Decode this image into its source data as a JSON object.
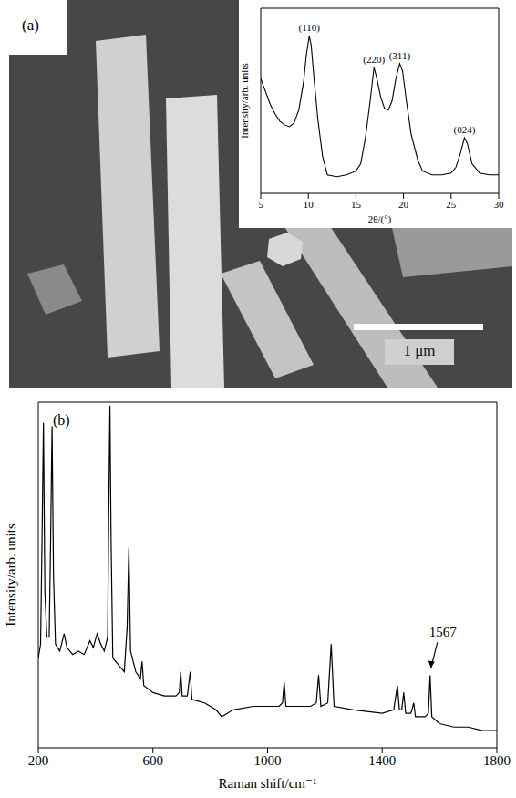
{
  "image": {
    "panel_label": "(a)",
    "scale_bar": "1 μm"
  },
  "chart_data": [
    {
      "type": "line",
      "xlabel": "2θ/(°)",
      "ylabel": "Intensity/arb. units",
      "x": [
        5,
        5.5,
        6,
        6.5,
        7,
        7.5,
        8,
        8.5,
        9,
        9.5,
        9.8,
        10.1,
        10.3,
        10.6,
        11,
        11.5,
        12,
        13,
        14,
        15,
        15.5,
        16,
        16.5,
        16.9,
        17.2,
        17.6,
        18,
        18.4,
        18.8,
        19.2,
        19.6,
        19.9,
        20.3,
        20.8,
        21.5,
        22,
        23,
        24,
        25,
        25.5,
        26,
        26.4,
        26.7,
        27.2,
        28,
        29,
        30
      ],
      "values": [
        62,
        55,
        48,
        43,
        39,
        37,
        36,
        38,
        45,
        60,
        75,
        85,
        80,
        62,
        40,
        20,
        10,
        9,
        10,
        12,
        16,
        30,
        50,
        68,
        62,
        52,
        46,
        45,
        50,
        62,
        70,
        66,
        50,
        32,
        18,
        12,
        10,
        10,
        11,
        14,
        22,
        30,
        27,
        16,
        11,
        10,
        10
      ],
      "color": "#000000",
      "xlim": [
        5,
        30
      ],
      "xticks": [
        5,
        10,
        15,
        20,
        25,
        30
      ],
      "ylim": [
        0,
        100
      ],
      "tick_labels": "x",
      "annotations": [
        {
          "text": "(110)",
          "x": 10.1,
          "y": 85
        },
        {
          "text": "(220)",
          "x": 16.9,
          "y": 68
        },
        {
          "text": "(311)",
          "x": 19.6,
          "y": 70
        },
        {
          "text": "(024)",
          "x": 26.4,
          "y": 30
        }
      ]
    },
    {
      "type": "line",
      "panel_label": "(b)",
      "xlabel": "Raman shift/cm⁻¹",
      "ylabel": "Intensity/arb. units",
      "x": [
        200,
        208,
        213,
        218,
        223,
        230,
        238,
        243,
        248,
        253,
        260,
        275,
        290,
        300,
        320,
        340,
        360,
        380,
        392,
        405,
        418,
        430,
        442,
        446,
        450,
        454,
        460,
        480,
        500,
        510,
        516,
        522,
        540,
        556,
        562,
        568,
        600,
        640,
        680,
        692,
        697,
        702,
        720,
        730,
        736,
        780,
        820,
        840,
        880,
        950,
        1000,
        1040,
        1052,
        1058,
        1064,
        1100,
        1150,
        1170,
        1178,
        1186,
        1210,
        1222,
        1232,
        1300,
        1400,
        1440,
        1453,
        1460,
        1468,
        1475,
        1482,
        1500,
        1510,
        1516,
        1550,
        1561,
        1567,
        1573,
        1600,
        1650,
        1700,
        1750,
        1800
      ],
      "values": [
        26,
        30,
        60,
        94,
        45,
        32,
        32,
        60,
        93,
        50,
        30,
        28,
        33,
        29,
        27,
        28,
        27,
        31,
        29,
        33,
        30,
        28,
        32,
        70,
        99,
        60,
        26,
        24,
        22,
        35,
        58,
        28,
        22,
        20,
        25,
        18,
        16,
        15,
        15,
        16,
        22,
        15,
        15,
        22,
        14,
        13,
        11,
        9,
        11,
        12,
        12,
        12,
        13,
        19,
        12,
        12,
        12,
        13,
        21,
        12,
        13,
        30,
        12,
        11,
        10,
        11,
        18,
        11,
        11,
        16,
        10,
        10,
        13,
        9,
        9,
        10,
        21,
        9,
        7,
        6,
        6,
        5,
        5
      ],
      "color": "#000000",
      "xlim": [
        200,
        1800
      ],
      "xticks": [
        200,
        600,
        1000,
        1400,
        1800
      ],
      "ylim": [
        0,
        100
      ],
      "tick_labels": "x",
      "annotations": [
        {
          "text": "1567",
          "x": 1567,
          "y": 21
        }
      ]
    }
  ]
}
